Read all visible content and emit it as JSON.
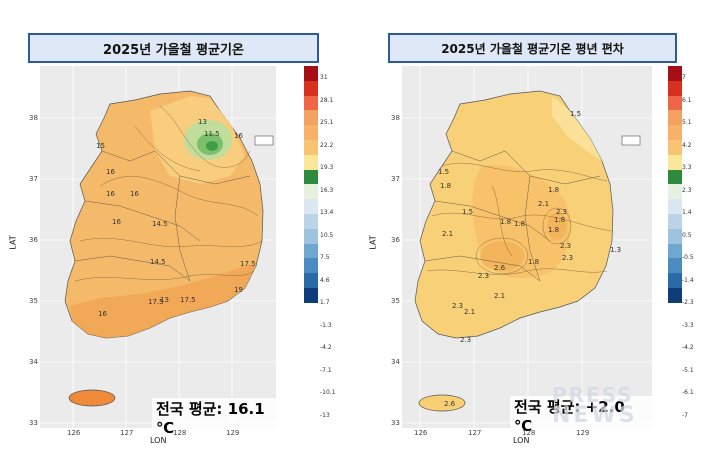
{
  "left_map": {
    "title": "2025년 가을철 평균기온",
    "summary": "전국 평균: 16.1 ℃",
    "y_ticks": [
      "38",
      "37",
      "36",
      "35",
      "34",
      "33"
    ],
    "x_ticks": [
      "126",
      "127",
      "128",
      "129"
    ],
    "y_axis_title": "LAT",
    "x_axis_title": "LON",
    "legend_labels": [
      "31",
      "28.1",
      "25.1",
      "22.2",
      "19.3",
      "16.3",
      "13.4",
      "10.5",
      "7.5",
      "4.6",
      "1.7",
      "-1.3",
      "-4.2",
      "-7.1",
      "-10.1",
      "-13"
    ],
    "legend_colors": [
      "#a50f15",
      "#d7301f",
      "#ef6548",
      "#f4a261",
      "#f7b267",
      "#f8c471",
      "#fbe79a",
      "#2e8b3e",
      "#e6f2df",
      "#dbe8f3",
      "#bcd4e8",
      "#9ec3df",
      "#6fa7d1",
      "#4a8cc2",
      "#2b6aa8",
      "#0f3d7a"
    ],
    "contour_labels": [
      "13",
      "11.5",
      "16",
      "15",
      "16",
      "16",
      "16",
      "14.5",
      "14.5",
      "17.5",
      "19",
      "17.5",
      "13",
      "16",
      "17.5",
      "16"
    ]
  },
  "right_map": {
    "title": "2025년 가을철 평균기온 평년 편차",
    "summary": "전국 평균: +2.0 ℃",
    "y_ticks": [
      "38",
      "37",
      "36",
      "35",
      "34",
      "33"
    ],
    "x_ticks": [
      "126",
      "127",
      "128",
      "129"
    ],
    "y_axis_title": "LAT",
    "x_axis_title": "LON",
    "legend_labels": [
      "7",
      "6.1",
      "5.1",
      "4.2",
      "3.3",
      "2.3",
      "1.4",
      "0.5",
      "-0.5",
      "-1.4",
      "-2.3",
      "-3.3",
      "-4.2",
      "-5.1",
      "-6.1",
      "-7"
    ],
    "legend_colors": [
      "#a50f15",
      "#d7301f",
      "#ef6548",
      "#f4a261",
      "#f7b267",
      "#f8c471",
      "#fbe79a",
      "#2e8b3e",
      "#e6f2df",
      "#dbe8f3",
      "#bcd4e8",
      "#9ec3df",
      "#6fa7d1",
      "#4a8cc2",
      "#2b6aa8",
      "#0f3d7a"
    ],
    "contour_labels": [
      "1.5",
      "1.5",
      "1.8",
      "1.8",
      "2.1",
      "1.8",
      "1.8",
      "2.3",
      "1.8",
      "1.8",
      "2.1",
      "2.6",
      "2.3",
      "1.8",
      "2.3",
      "2.3",
      "1.5",
      "1.3",
      "2.1",
      "2.1",
      "2.3",
      "2.3",
      "2.6"
    ]
  },
  "watermark": {
    "line1": "PRESS",
    "line2": "NEWS"
  }
}
